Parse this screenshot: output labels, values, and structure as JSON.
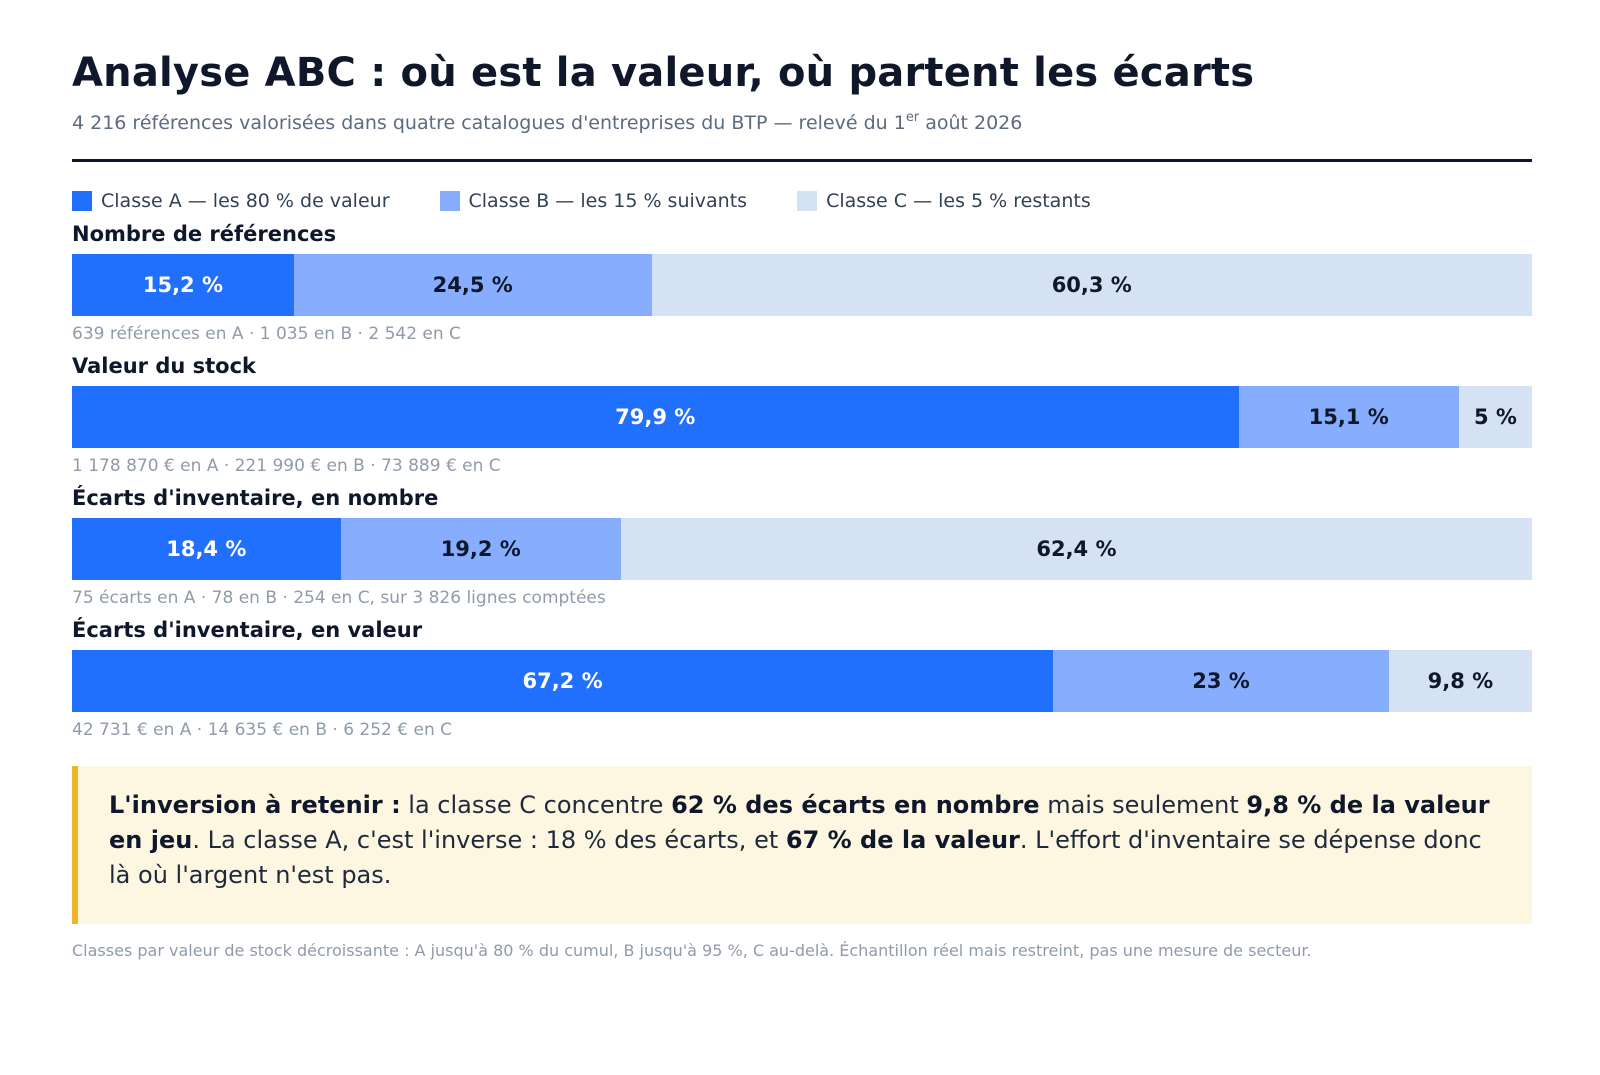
{
  "title": "Analyse ABC : où est la valeur, où partent les écarts",
  "subtitle": {
    "before": "4 216 références valorisées dans quatre catalogues d'entreprises du BTP — relevé du 1",
    "sup": "er",
    "after": " août 2026"
  },
  "colors": {
    "classe_a": "#206ffd",
    "classe_b": "#87aefe",
    "classe_c": "#d5e2f3",
    "text_on_a": "#ffffff",
    "text_on_light": "#0f172a",
    "callout_bg": "#fdf7e2",
    "callout_border": "#f0b42a"
  },
  "legend": [
    {
      "label": "Classe A — les 80 % de valeur",
      "color": "#206ffd"
    },
    {
      "label": "Classe B — les 15 % suivants",
      "color": "#87aefe"
    },
    {
      "label": "Classe C — les 5 % restants",
      "color": "#d5e2f3"
    }
  ],
  "chart_data": {
    "type": "bar",
    "orientation": "horizontal-stacked-100",
    "categories": [
      "Classe A",
      "Classe B",
      "Classe C"
    ],
    "series": [
      {
        "title": "Nombre de références",
        "values": [
          15.2,
          24.5,
          60.3
        ],
        "labels": [
          "15,2 %",
          "24,5 %",
          "60,3 %"
        ],
        "note": "639 références en A · 1 035 en B · 2 542 en C"
      },
      {
        "title": "Valeur du stock",
        "values": [
          79.9,
          15.1,
          5.0
        ],
        "labels": [
          "79,9 %",
          "15,1 %",
          "5 %"
        ],
        "note": "1 178 870 € en A · 221 990 € en B · 73 889 € en C"
      },
      {
        "title": "Écarts d'inventaire, en nombre",
        "values": [
          18.4,
          19.2,
          62.4
        ],
        "labels": [
          "18,4 %",
          "19,2 %",
          "62,4 %"
        ],
        "note": "75 écarts en A · 78 en B · 254 en C, sur 3 826 lignes comptées"
      },
      {
        "title": "Écarts d'inventaire, en valeur",
        "values": [
          67.2,
          23.0,
          9.8
        ],
        "labels": [
          "67,2 %",
          "23 %",
          "9,8 %"
        ],
        "note": "42 731 € en A · 14 635 € en B · 6 252 € en C"
      }
    ]
  },
  "callout": [
    {
      "text": "L'inversion à retenir :",
      "bold": true
    },
    {
      "text": " la classe C concentre ",
      "bold": false
    },
    {
      "text": "62 % des écarts en nombre",
      "bold": true
    },
    {
      "text": " mais seulement ",
      "bold": false
    },
    {
      "text": "9,8 % de la valeur en jeu",
      "bold": true
    },
    {
      "text": ". La classe A, c'est l'inverse : 18 % des écarts, et ",
      "bold": false
    },
    {
      "text": "67 % de la valeur",
      "bold": true
    },
    {
      "text": ". L'effort d'inventaire se dépense donc là où l'argent n'est pas.",
      "bold": false
    }
  ],
  "footnote": "Classes par valeur de stock décroissante : A jusqu'à 80 % du cumul, B jusqu'à 95 %, C au-delà. Échantillon réel mais restreint, pas une mesure de secteur."
}
